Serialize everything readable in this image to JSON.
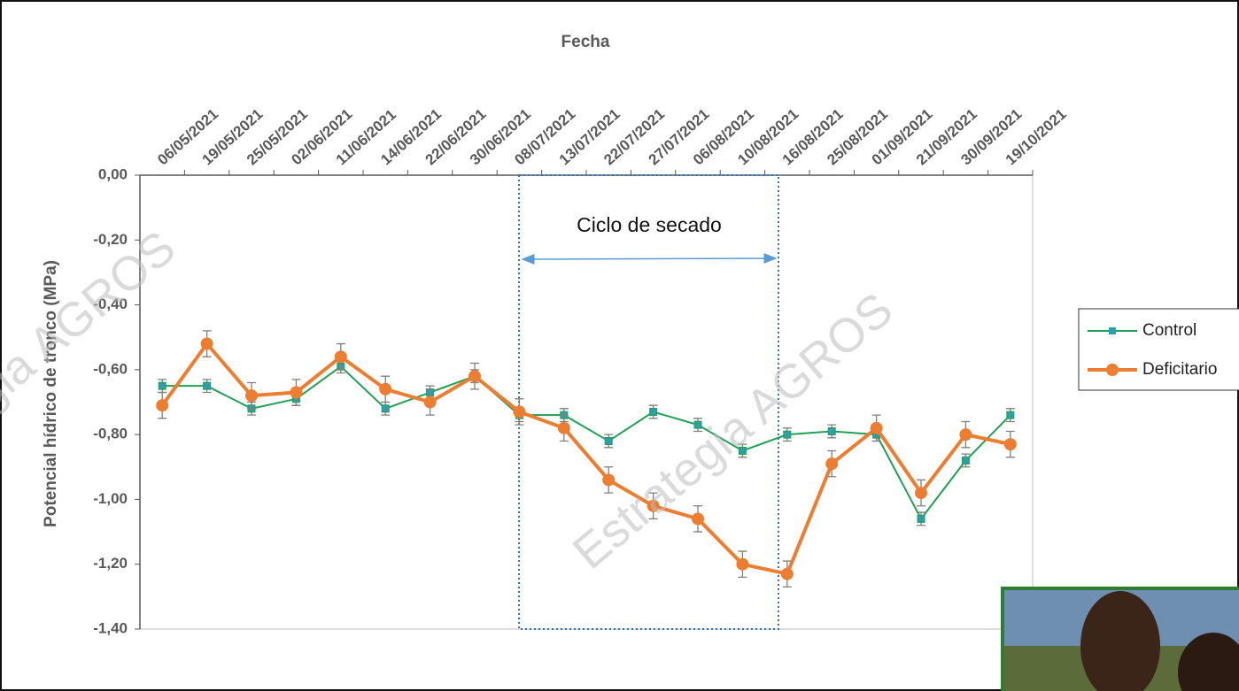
{
  "chart_data": {
    "type": "line",
    "x_label": "Fecha",
    "y_label": "Potencial hídrico de tronco (MPa)",
    "annotation": "Ciclo de secado",
    "watermark": "Estrategia AGROS",
    "categories": [
      "06/05/2021",
      "19/05/2021",
      "25/05/2021",
      "02/06/2021",
      "11/06/2021",
      "14/06/2021",
      "22/06/2021",
      "30/06/2021",
      "08/07/2021",
      "13/07/2021",
      "22/07/2021",
      "27/07/2021",
      "06/08/2021",
      "10/08/2021",
      "16/08/2021",
      "25/08/2021",
      "01/09/2021",
      "21/09/2021",
      "30/09/2021",
      "19/10/2021"
    ],
    "series": [
      {
        "name": "Control",
        "color": "#22a055",
        "marker": "square",
        "values": [
          -0.65,
          -0.65,
          -0.72,
          -0.69,
          -0.59,
          -0.72,
          -0.67,
          -0.62,
          -0.74,
          -0.74,
          -0.82,
          -0.73,
          -0.77,
          -0.85,
          -0.8,
          -0.79,
          -0.8,
          -1.06,
          -0.88,
          -0.74
        ],
        "errors": [
          0.02,
          0.02,
          0.02,
          0.02,
          0.02,
          0.02,
          0.02,
          0.02,
          0.02,
          0.02,
          0.02,
          0.02,
          0.02,
          0.02,
          0.02,
          0.02,
          0.02,
          0.02,
          0.02,
          0.02
        ]
      },
      {
        "name": "Deficitario",
        "color": "#ed7d31",
        "marker": "circle",
        "values": [
          -0.71,
          -0.52,
          -0.68,
          -0.67,
          -0.56,
          -0.66,
          -0.7,
          -0.62,
          -0.73,
          -0.78,
          -0.94,
          -1.02,
          -1.06,
          -1.2,
          -1.23,
          -0.89,
          -0.78,
          -0.98,
          -0.8,
          -0.83
        ],
        "errors": [
          0.04,
          0.04,
          0.04,
          0.04,
          0.04,
          0.04,
          0.04,
          0.04,
          0.04,
          0.04,
          0.04,
          0.04,
          0.04,
          0.04,
          0.04,
          0.04,
          0.04,
          0.04,
          0.04,
          0.04
        ]
      }
    ],
    "ylim": [
      -1.4,
      0
    ],
    "yticks": [
      {
        "value": 0,
        "label": "0,00"
      },
      {
        "value": -0.2,
        "label": "-0,20"
      },
      {
        "value": -0.4,
        "label": "-0,40"
      },
      {
        "value": -0.6,
        "label": "-0,60"
      },
      {
        "value": -0.8,
        "label": "-0,80"
      },
      {
        "value": -1.0,
        "label": "-1,00"
      },
      {
        "value": -1.2,
        "label": "-1,20"
      },
      {
        "value": -1.4,
        "label": "-1,40"
      }
    ],
    "grid": false,
    "legend": "right"
  }
}
